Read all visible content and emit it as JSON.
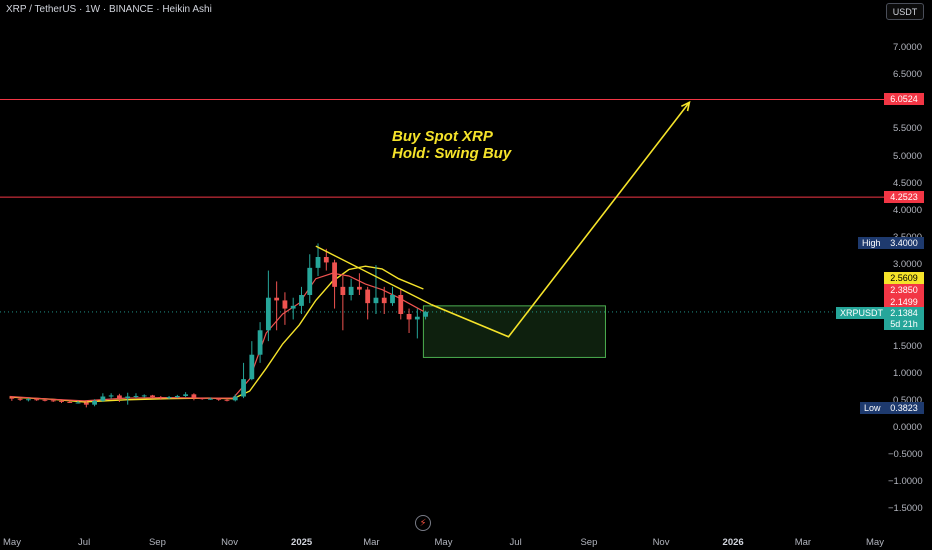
{
  "header": {
    "symbol_line": "XRP / TetherUS · 1W · BINANCE · Heikin Ashi",
    "currency_button": "USDT"
  },
  "annotation": {
    "line1": "Buy Spot XRP",
    "line2": "Hold: Swing Buy"
  },
  "price_tags": {
    "resistance_high": "6.0524",
    "resistance_mid": "4.2523",
    "high_label": "High",
    "high_value": "3.4000",
    "ma_value": "2.5609",
    "value_a": "2.3850",
    "value_b": "2.1499",
    "symbol_tag": "XRPUSDT",
    "last_price": "2.1384",
    "countdown": "5d 21h",
    "low_label": "Low",
    "low_value": "0.3823"
  },
  "colors": {
    "background": "#000000",
    "up_candle": "#26a69a",
    "down_candle": "#ef5350",
    "resistance_line": "#f23645",
    "drawing": "#f5e32a",
    "zone_fill": "rgba(76,175,80,0.18)",
    "zone_border": "#4caf50",
    "high_low_tag": "#1e3a6e"
  },
  "icons": {
    "lightning": "lightning-icon"
  },
  "chart_data": {
    "type": "candlestick",
    "style": "Heikin Ashi",
    "interval": "1W",
    "y_scale": "linear",
    "ylim": [
      -1.6,
      7.45
    ],
    "y_ticks": [
      "7.0000",
      "6.5000",
      "5.5000",
      "5.0000",
      "4.5000",
      "4.0000",
      "3.5000",
      "3.0000",
      "1.5000",
      "1.0000",
      "0.5000",
      "0.0000",
      "−0.5000",
      "−1.0000",
      "−1.5000"
    ],
    "x_ticks": [
      {
        "label": "May",
        "date": "2024-05-01"
      },
      {
        "label": "Jul",
        "date": "2024-07-01"
      },
      {
        "label": "Sep",
        "date": "2024-09-01"
      },
      {
        "label": "Nov",
        "date": "2024-11-01"
      },
      {
        "label": "2025",
        "date": "2025-01-01",
        "bold": true
      },
      {
        "label": "Mar",
        "date": "2025-03-01"
      },
      {
        "label": "May",
        "date": "2025-05-01"
      },
      {
        "label": "Jul",
        "date": "2025-07-01"
      },
      {
        "label": "Sep",
        "date": "2025-09-01"
      },
      {
        "label": "Nov",
        "date": "2025-11-01"
      },
      {
        "label": "2026",
        "date": "2026-01-01",
        "bold": true
      },
      {
        "label": "Mar",
        "date": "2026-03-01"
      },
      {
        "label": "May",
        "date": "2026-05-01"
      }
    ],
    "candles": [
      {
        "date": "2024-04-29",
        "o": 0.56,
        "h": 0.58,
        "l": 0.5,
        "c": 0.54
      },
      {
        "date": "2024-05-06",
        "o": 0.54,
        "h": 0.56,
        "l": 0.5,
        "c": 0.52
      },
      {
        "date": "2024-05-13",
        "o": 0.52,
        "h": 0.55,
        "l": 0.49,
        "c": 0.53
      },
      {
        "date": "2024-05-20",
        "o": 0.53,
        "h": 0.55,
        "l": 0.5,
        "c": 0.52
      },
      {
        "date": "2024-05-27",
        "o": 0.52,
        "h": 0.54,
        "l": 0.49,
        "c": 0.51
      },
      {
        "date": "2024-06-03",
        "o": 0.51,
        "h": 0.53,
        "l": 0.48,
        "c": 0.5
      },
      {
        "date": "2024-06-10",
        "o": 0.5,
        "h": 0.51,
        "l": 0.46,
        "c": 0.48
      },
      {
        "date": "2024-06-17",
        "o": 0.48,
        "h": 0.5,
        "l": 0.46,
        "c": 0.47
      },
      {
        "date": "2024-06-24",
        "o": 0.47,
        "h": 0.5,
        "l": 0.45,
        "c": 0.47
      },
      {
        "date": "2024-07-01",
        "o": 0.47,
        "h": 0.49,
        "l": 0.38,
        "c": 0.43
      },
      {
        "date": "2024-07-08",
        "o": 0.43,
        "h": 0.53,
        "l": 0.4,
        "c": 0.5
      },
      {
        "date": "2024-07-15",
        "o": 0.5,
        "h": 0.64,
        "l": 0.48,
        "c": 0.58
      },
      {
        "date": "2024-07-22",
        "o": 0.58,
        "h": 0.64,
        "l": 0.54,
        "c": 0.6
      },
      {
        "date": "2024-07-29",
        "o": 0.6,
        "h": 0.63,
        "l": 0.48,
        "c": 0.55
      },
      {
        "date": "2024-08-05",
        "o": 0.55,
        "h": 0.65,
        "l": 0.43,
        "c": 0.58
      },
      {
        "date": "2024-08-12",
        "o": 0.58,
        "h": 0.64,
        "l": 0.55,
        "c": 0.59
      },
      {
        "date": "2024-08-19",
        "o": 0.59,
        "h": 0.62,
        "l": 0.56,
        "c": 0.6
      },
      {
        "date": "2024-08-26",
        "o": 0.6,
        "h": 0.61,
        "l": 0.54,
        "c": 0.57
      },
      {
        "date": "2024-09-02",
        "o": 0.57,
        "h": 0.59,
        "l": 0.52,
        "c": 0.55
      },
      {
        "date": "2024-09-09",
        "o": 0.55,
        "h": 0.59,
        "l": 0.53,
        "c": 0.57
      },
      {
        "date": "2024-09-16",
        "o": 0.57,
        "h": 0.61,
        "l": 0.55,
        "c": 0.59
      },
      {
        "date": "2024-09-23",
        "o": 0.59,
        "h": 0.66,
        "l": 0.57,
        "c": 0.62
      },
      {
        "date": "2024-09-30",
        "o": 0.62,
        "h": 0.64,
        "l": 0.51,
        "c": 0.55
      },
      {
        "date": "2024-10-07",
        "o": 0.55,
        "h": 0.56,
        "l": 0.52,
        "c": 0.54
      },
      {
        "date": "2024-10-14",
        "o": 0.54,
        "h": 0.56,
        "l": 0.52,
        "c": 0.54
      },
      {
        "date": "2024-10-21",
        "o": 0.54,
        "h": 0.55,
        "l": 0.5,
        "c": 0.52
      },
      {
        "date": "2024-10-28",
        "o": 0.52,
        "h": 0.54,
        "l": 0.49,
        "c": 0.51
      },
      {
        "date": "2024-11-04",
        "o": 0.51,
        "h": 0.62,
        "l": 0.49,
        "c": 0.58
      },
      {
        "date": "2024-11-11",
        "o": 0.58,
        "h": 1.2,
        "l": 0.55,
        "c": 0.9
      },
      {
        "date": "2024-11-18",
        "o": 0.9,
        "h": 1.6,
        "l": 0.88,
        "c": 1.35
      },
      {
        "date": "2024-11-25",
        "o": 1.35,
        "h": 1.95,
        "l": 1.2,
        "c": 1.8
      },
      {
        "date": "2024-12-02",
        "o": 1.8,
        "h": 2.9,
        "l": 1.6,
        "c": 2.4
      },
      {
        "date": "2024-12-09",
        "o": 2.4,
        "h": 2.7,
        "l": 1.8,
        "c": 2.35
      },
      {
        "date": "2024-12-16",
        "o": 2.35,
        "h": 2.5,
        "l": 1.9,
        "c": 2.2
      },
      {
        "date": "2024-12-23",
        "o": 2.2,
        "h": 2.4,
        "l": 2.0,
        "c": 2.25
      },
      {
        "date": "2024-12-30",
        "o": 2.25,
        "h": 2.6,
        "l": 2.1,
        "c": 2.45
      },
      {
        "date": "2025-01-06",
        "o": 2.45,
        "h": 3.2,
        "l": 2.3,
        "c": 2.95
      },
      {
        "date": "2025-01-13",
        "o": 2.95,
        "h": 3.4,
        "l": 2.8,
        "c": 3.15
      },
      {
        "date": "2025-01-20",
        "o": 3.15,
        "h": 3.3,
        "l": 2.9,
        "c": 3.05
      },
      {
        "date": "2025-01-27",
        "o": 3.05,
        "h": 3.1,
        "l": 2.2,
        "c": 2.6
      },
      {
        "date": "2025-02-03",
        "o": 2.6,
        "h": 2.8,
        "l": 1.8,
        "c": 2.45
      },
      {
        "date": "2025-02-10",
        "o": 2.45,
        "h": 2.75,
        "l": 2.35,
        "c": 2.6
      },
      {
        "date": "2025-02-17",
        "o": 2.6,
        "h": 2.85,
        "l": 2.45,
        "c": 2.55
      },
      {
        "date": "2025-02-24",
        "o": 2.55,
        "h": 2.6,
        "l": 2.0,
        "c": 2.3
      },
      {
        "date": "2025-03-03",
        "o": 2.3,
        "h": 3.0,
        "l": 2.1,
        "c": 2.4
      },
      {
        "date": "2025-03-10",
        "o": 2.4,
        "h": 2.6,
        "l": 2.1,
        "c": 2.3
      },
      {
        "date": "2025-03-17",
        "o": 2.3,
        "h": 2.6,
        "l": 2.25,
        "c": 2.45
      },
      {
        "date": "2025-03-24",
        "o": 2.45,
        "h": 2.55,
        "l": 2.0,
        "c": 2.1
      },
      {
        "date": "2025-03-31",
        "o": 2.1,
        "h": 2.2,
        "l": 1.75,
        "c": 2.0
      },
      {
        "date": "2025-04-07",
        "o": 2.0,
        "h": 2.2,
        "l": 1.65,
        "c": 2.05
      },
      {
        "date": "2025-04-14",
        "o": 2.05,
        "h": 2.16,
        "l": 2.0,
        "c": 2.14
      }
    ],
    "moving_average_fast": [
      {
        "date": "2024-04-29",
        "v": 0.58
      },
      {
        "date": "2024-06-03",
        "v": 0.53
      },
      {
        "date": "2024-07-01",
        "v": 0.5
      },
      {
        "date": "2024-08-05",
        "v": 0.55
      },
      {
        "date": "2024-09-09",
        "v": 0.56
      },
      {
        "date": "2024-10-14",
        "v": 0.55
      },
      {
        "date": "2024-11-04",
        "v": 0.55
      },
      {
        "date": "2024-11-18",
        "v": 0.9
      },
      {
        "date": "2024-12-02",
        "v": 1.75
      },
      {
        "date": "2024-12-16",
        "v": 2.1
      },
      {
        "date": "2024-12-30",
        "v": 2.3
      },
      {
        "date": "2025-01-13",
        "v": 2.75
      },
      {
        "date": "2025-01-27",
        "v": 2.85
      },
      {
        "date": "2025-02-10",
        "v": 2.8
      },
      {
        "date": "2025-02-24",
        "v": 2.65
      },
      {
        "date": "2025-03-10",
        "v": 2.55
      },
      {
        "date": "2025-03-24",
        "v": 2.4
      },
      {
        "date": "2025-04-14",
        "v": 2.15
      }
    ],
    "moving_average_slow": [
      {
        "date": "2024-04-29",
        "v": 0.57
      },
      {
        "date": "2024-06-03",
        "v": 0.53
      },
      {
        "date": "2024-07-01",
        "v": 0.48
      },
      {
        "date": "2024-08-05",
        "v": 0.52
      },
      {
        "date": "2024-09-09",
        "v": 0.54
      },
      {
        "date": "2024-10-14",
        "v": 0.55
      },
      {
        "date": "2024-11-04",
        "v": 0.54
      },
      {
        "date": "2024-11-18",
        "v": 0.68
      },
      {
        "date": "2024-12-02",
        "v": 1.1
      },
      {
        "date": "2024-12-16",
        "v": 1.55
      },
      {
        "date": "2024-12-30",
        "v": 1.9
      },
      {
        "date": "2025-01-13",
        "v": 2.35
      },
      {
        "date": "2025-01-27",
        "v": 2.7
      },
      {
        "date": "2025-02-10",
        "v": 2.92
      },
      {
        "date": "2025-02-24",
        "v": 2.98
      },
      {
        "date": "2025-03-10",
        "v": 2.93
      },
      {
        "date": "2025-03-24",
        "v": 2.75
      },
      {
        "date": "2025-04-14",
        "v": 2.56
      }
    ],
    "horizontal_lines": [
      6.0524,
      4.2523
    ],
    "last_price": 2.1384,
    "buy_zone": {
      "date_start": "2025-04-14",
      "date_end": "2025-09-15",
      "price_low": 1.3,
      "price_high": 2.25
    },
    "trendline": [
      {
        "date": "2025-01-13",
        "v": 3.35
      },
      {
        "date": "2025-04-21",
        "v": 2.27
      }
    ],
    "projection_path": [
      {
        "date": "2025-04-21",
        "v": 2.27
      },
      {
        "date": "2025-06-25",
        "v": 1.68
      },
      {
        "date": "2025-11-25",
        "v": 6.0
      }
    ]
  }
}
